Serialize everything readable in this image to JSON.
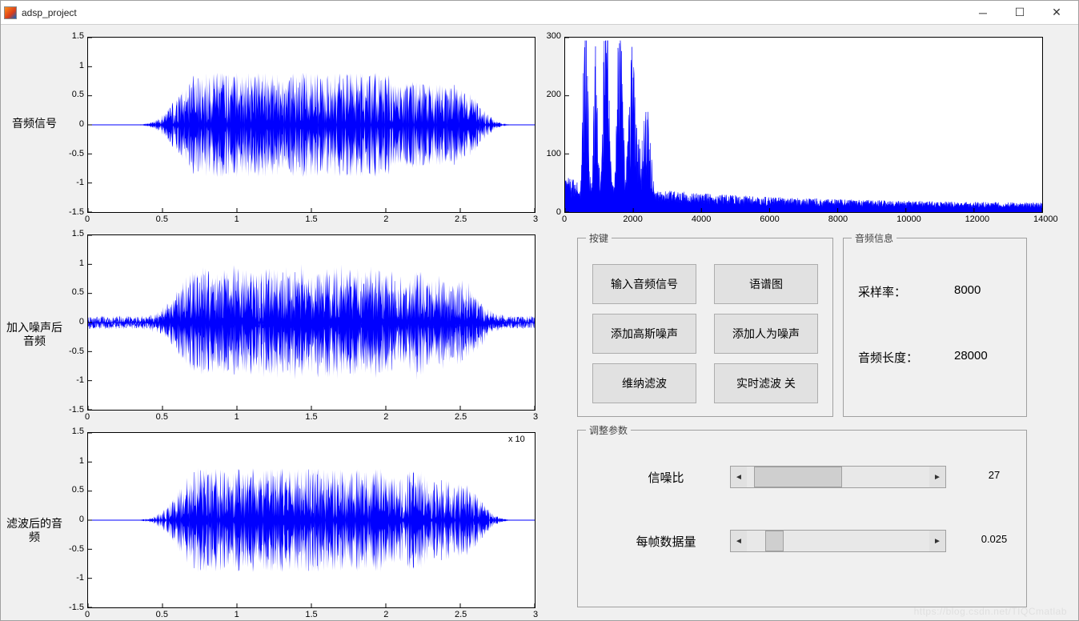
{
  "window": {
    "title": "adsp_project"
  },
  "colors": {
    "signal": "#0000ff",
    "axis": "#000000",
    "bg": "#ffffff",
    "panel_bg": "#f0f0f0",
    "button_bg": "#e1e1e1",
    "button_border": "#adadad"
  },
  "plots": {
    "left": {
      "labels": [
        "音频信号",
        "加入噪声后音频",
        "滤波后的音频"
      ],
      "xlim": [
        0,
        3
      ],
      "xticks": [
        0,
        0.5,
        1,
        1.5,
        2,
        2.5,
        3
      ],
      "ylim": [
        -1.5,
        1.5
      ],
      "yticks": [
        -1.5,
        -1,
        -0.5,
        0,
        0.5,
        1,
        1.5
      ],
      "x_exp_annotation": "x 10",
      "line_width": 1
    },
    "spectrum": {
      "xlim": [
        0,
        14000
      ],
      "xticks": [
        0,
        2000,
        4000,
        6000,
        8000,
        10000,
        12000,
        14000
      ],
      "ylim": [
        0,
        300
      ],
      "yticks": [
        0,
        100,
        200,
        300
      ],
      "line_width": 1
    }
  },
  "buttons_panel": {
    "legend": "按键",
    "items": [
      [
        "输入音频信号",
        "语谱图"
      ],
      [
        "添加高斯噪声",
        "添加人为噪声"
      ],
      [
        "维纳滤波",
        "实时滤波 关"
      ]
    ]
  },
  "info_panel": {
    "legend": "音频信息",
    "rows": [
      {
        "label": "采样率：",
        "value": "8000"
      },
      {
        "label": "音频长度：",
        "value": "28000"
      }
    ]
  },
  "params_panel": {
    "legend": "调整参数",
    "sliders": [
      {
        "label": "信噪比",
        "value": "27",
        "thumb_left_pct": 4,
        "thumb_width_pct": 48
      },
      {
        "label": "每帧数据量",
        "value": "0.025",
        "thumb_left_pct": 10,
        "thumb_width_pct": 10
      }
    ]
  },
  "watermark": "https://blog.csdn.net/TIQCmatlab"
}
